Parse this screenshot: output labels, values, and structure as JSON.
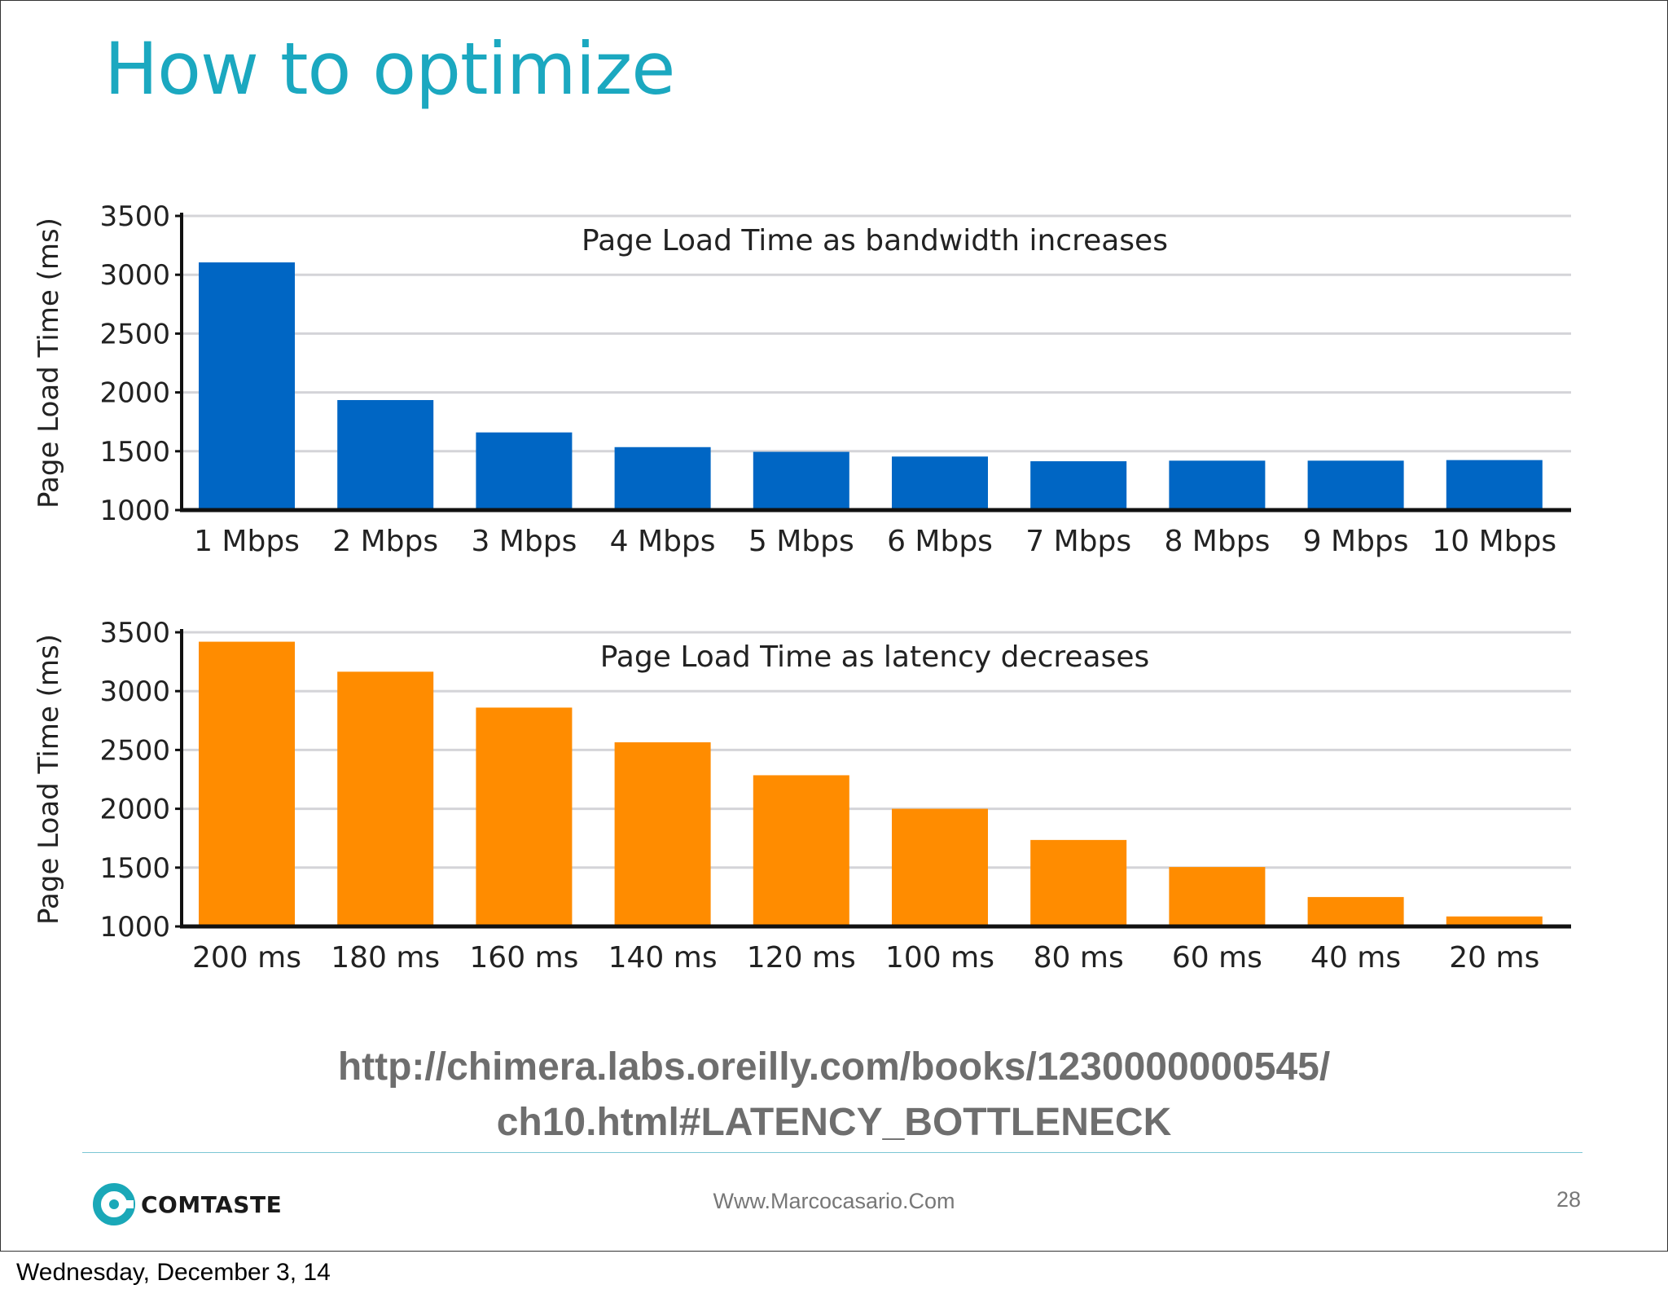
{
  "slide": {
    "title": "How to optimize",
    "source_url_line1": "http://chimera.labs.oreilly.com/books/1230000000545/",
    "source_url_line2": "ch10.html#LATENCY_BOTTLENECK",
    "logo_text": "COMTASTE",
    "website": "Www.Marcocasario.Com",
    "page_number": "28",
    "date": "Wednesday, December 3, 14"
  },
  "colors": {
    "title": "#1ba8c0",
    "bandwidth_bar": "#0066c4",
    "latency_bar": "#ff8c00",
    "grid": "#d4d4d8",
    "axis": "#111111"
  },
  "chart_data": [
    {
      "type": "bar",
      "title": "Page Load Time as bandwidth increases",
      "xlabel": "",
      "ylabel": "Page Load Time (ms)",
      "ylim": [
        1000,
        3500
      ],
      "yticks": [
        1000,
        1500,
        2000,
        2500,
        3000,
        3500
      ],
      "grid": true,
      "categories": [
        "1 Mbps",
        "2 Mbps",
        "3 Mbps",
        "4 Mbps",
        "5 Mbps",
        "6 Mbps",
        "7 Mbps",
        "8 Mbps",
        "9 Mbps",
        "10 Mbps"
      ],
      "values": [
        3105,
        1935,
        1660,
        1535,
        1495,
        1455,
        1415,
        1420,
        1420,
        1425
      ],
      "color": "#0066c4"
    },
    {
      "type": "bar",
      "title": "Page Load Time as latency decreases",
      "xlabel": "",
      "ylabel": "Page Load Time (ms)",
      "ylim": [
        1000,
        3500
      ],
      "yticks": [
        1000,
        1500,
        2000,
        2500,
        3000,
        3500
      ],
      "grid": true,
      "categories": [
        "200 ms",
        "180 ms",
        "160 ms",
        "140 ms",
        "120 ms",
        "100 ms",
        "80 ms",
        "60 ms",
        "40 ms",
        "20 ms"
      ],
      "values": [
        3420,
        3165,
        2860,
        2565,
        2285,
        2000,
        1735,
        1505,
        1250,
        1085
      ],
      "color": "#ff8c00"
    }
  ]
}
